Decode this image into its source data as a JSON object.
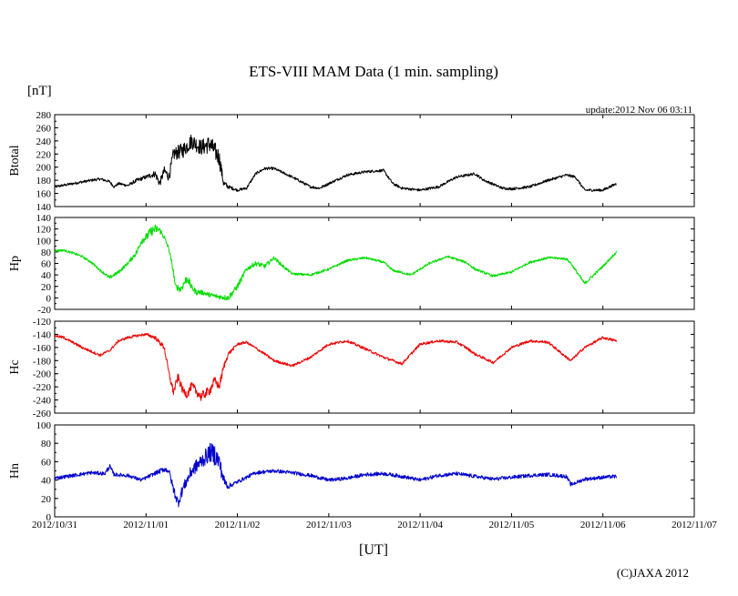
{
  "header": {
    "title": "ETS-VIII MAM Data (1 min. sampling)",
    "unit_label": "[nT]",
    "update_text": "update:2012 Nov 06 03:11"
  },
  "footer": {
    "x_axis_label": "[UT]",
    "copyright": "(C)JAXA 2012"
  },
  "chart_data": {
    "type": "line",
    "title": "ETS-VIII MAM Data (1 min. sampling)",
    "xlabel": "[UT]",
    "ylabel": "[nT]",
    "x_unit": "days since 2012/10/31 00:00 UT",
    "xlim": [
      0,
      7
    ],
    "x_tick_values": [
      0,
      1,
      2,
      3,
      4,
      5,
      6,
      7
    ],
    "x_tick_labels": [
      "2012/10/31",
      "2012/11/01",
      "2012/11/02",
      "2012/11/03",
      "2012/11/04",
      "2012/11/05",
      "2012/11/06",
      "2012/11/07"
    ],
    "series": [
      {
        "name": "Btotal",
        "color": "#000000",
        "ylim": [
          140,
          280
        ],
        "yticks": [
          140,
          160,
          180,
          200,
          220,
          240,
          260,
          280
        ],
        "x": [
          0,
          0.2,
          0.4,
          0.5,
          0.6,
          0.65,
          0.7,
          0.8,
          0.9,
          1.0,
          1.1,
          1.15,
          1.2,
          1.25,
          1.3,
          1.4,
          1.5,
          1.6,
          1.7,
          1.8,
          1.85,
          1.9,
          2.0,
          2.1,
          2.2,
          2.3,
          2.4,
          2.6,
          2.8,
          2.9,
          3.0,
          3.2,
          3.4,
          3.6,
          3.7,
          3.8,
          4.0,
          4.2,
          4.4,
          4.6,
          4.7,
          4.9,
          5.0,
          5.2,
          5.4,
          5.6,
          5.7,
          5.8,
          6.0,
          6.15
        ],
        "y": [
          170,
          175,
          180,
          182,
          178,
          170,
          175,
          172,
          180,
          185,
          190,
          175,
          195,
          185,
          220,
          225,
          240,
          230,
          235,
          215,
          175,
          170,
          165,
          168,
          190,
          198,
          198,
          185,
          170,
          168,
          175,
          188,
          193,
          195,
          175,
          168,
          165,
          170,
          185,
          190,
          180,
          168,
          167,
          170,
          180,
          188,
          185,
          165,
          165,
          175
        ],
        "noise": [
          2,
          2,
          2,
          2,
          2,
          2,
          2,
          2,
          3,
          3,
          5,
          6,
          6,
          8,
          10,
          12,
          12,
          12,
          14,
          14,
          6,
          3,
          2,
          2,
          2,
          2,
          2,
          2,
          2,
          2,
          2,
          2,
          2,
          2,
          2,
          2,
          2,
          2,
          2,
          2,
          2,
          2,
          2,
          2,
          2,
          2,
          2,
          2,
          2,
          2
        ]
      },
      {
        "name": "Hp",
        "color": "#00dd00",
        "ylim": [
          -20,
          140
        ],
        "yticks": [
          -20,
          0,
          20,
          40,
          60,
          80,
          100,
          120,
          140
        ],
        "x": [
          0,
          0.1,
          0.2,
          0.3,
          0.4,
          0.5,
          0.6,
          0.7,
          0.8,
          0.9,
          0.95,
          1.0,
          1.05,
          1.1,
          1.15,
          1.2,
          1.25,
          1.3,
          1.32,
          1.38,
          1.45,
          1.5,
          1.55,
          1.6,
          1.7,
          1.8,
          1.9,
          2.0,
          2.05,
          2.1,
          2.2,
          2.3,
          2.4,
          2.5,
          2.6,
          2.8,
          3.0,
          3.2,
          3.4,
          3.6,
          3.7,
          3.9,
          4.1,
          4.3,
          4.5,
          4.6,
          4.8,
          5.0,
          5.2,
          5.4,
          5.6,
          5.65,
          5.8,
          6.0,
          6.15
        ],
        "y": [
          82,
          83,
          78,
          72,
          62,
          48,
          35,
          45,
          60,
          80,
          100,
          105,
          115,
          120,
          118,
          105,
          85,
          45,
          20,
          15,
          35,
          18,
          10,
          10,
          5,
          2,
          0,
          20,
          35,
          50,
          60,
          55,
          70,
          55,
          42,
          40,
          50,
          65,
          70,
          62,
          48,
          40,
          60,
          72,
          62,
          50,
          38,
          45,
          62,
          70,
          68,
          60,
          25,
          55,
          80
        ],
        "noise": [
          2,
          2,
          2,
          2,
          2,
          2,
          3,
          3,
          3,
          5,
          6,
          7,
          8,
          8,
          6,
          4,
          4,
          5,
          5,
          6,
          8,
          5,
          5,
          4,
          4,
          4,
          5,
          5,
          5,
          4,
          4,
          4,
          3,
          3,
          2,
          2,
          2,
          2,
          2,
          2,
          2,
          2,
          2,
          2,
          2,
          2,
          2,
          2,
          2,
          2,
          2,
          2,
          3,
          2,
          2
        ]
      },
      {
        "name": "Hc",
        "color": "#ee0000",
        "ylim": [
          -260,
          -120
        ],
        "yticks": [
          -260,
          -240,
          -220,
          -200,
          -180,
          -160,
          -140,
          -120
        ],
        "x": [
          0,
          0.1,
          0.3,
          0.5,
          0.55,
          0.6,
          0.7,
          0.8,
          0.9,
          1.0,
          1.1,
          1.2,
          1.25,
          1.3,
          1.35,
          1.4,
          1.45,
          1.5,
          1.6,
          1.7,
          1.75,
          1.8,
          1.85,
          1.9,
          2.0,
          2.1,
          2.3,
          2.4,
          2.6,
          2.8,
          3.0,
          3.2,
          3.4,
          3.6,
          3.8,
          4.0,
          4.2,
          4.4,
          4.5,
          4.6,
          4.8,
          5.0,
          5.2,
          5.4,
          5.6,
          5.65,
          5.8,
          6.0,
          6.15
        ],
        "y": [
          -142,
          -145,
          -160,
          -172,
          -168,
          -165,
          -150,
          -145,
          -142,
          -140,
          -145,
          -160,
          -200,
          -228,
          -205,
          -225,
          -232,
          -218,
          -235,
          -225,
          -210,
          -220,
          -190,
          -170,
          -155,
          -152,
          -170,
          -180,
          -188,
          -175,
          -155,
          -150,
          -162,
          -175,
          -185,
          -155,
          -150,
          -152,
          -160,
          -170,
          -183,
          -160,
          -150,
          -152,
          -175,
          -180,
          -160,
          -145,
          -150
        ],
        "noise": [
          2,
          2,
          2,
          2,
          2,
          2,
          2,
          2,
          2,
          2,
          3,
          4,
          5,
          6,
          6,
          6,
          6,
          6,
          7,
          7,
          6,
          6,
          5,
          3,
          2,
          2,
          2,
          2,
          2,
          2,
          2,
          2,
          2,
          2,
          2,
          2,
          2,
          2,
          2,
          2,
          2,
          2,
          2,
          2,
          2,
          2,
          2,
          2,
          2
        ]
      },
      {
        "name": "Hn",
        "color": "#0000cc",
        "ylim": [
          0,
          100
        ],
        "yticks": [
          0,
          20,
          40,
          60,
          80,
          100
        ],
        "x": [
          0,
          0.2,
          0.4,
          0.55,
          0.6,
          0.65,
          0.8,
          0.95,
          1.05,
          1.2,
          1.25,
          1.3,
          1.35,
          1.4,
          1.45,
          1.5,
          1.6,
          1.7,
          1.75,
          1.8,
          1.85,
          1.9,
          2.0,
          2.2,
          2.4,
          2.6,
          2.8,
          3.0,
          3.2,
          3.4,
          3.6,
          3.8,
          4.0,
          4.2,
          4.4,
          4.6,
          4.8,
          5.0,
          5.2,
          5.4,
          5.6,
          5.65,
          5.8,
          6.0,
          6.15
        ],
        "y": [
          42,
          45,
          48,
          47,
          55,
          46,
          45,
          40,
          45,
          52,
          50,
          30,
          15,
          30,
          40,
          50,
          60,
          70,
          68,
          60,
          40,
          33,
          38,
          48,
          50,
          48,
          45,
          40,
          42,
          46,
          47,
          44,
          40,
          45,
          47,
          44,
          41,
          43,
          45,
          46,
          44,
          35,
          41,
          43,
          44
        ],
        "noise": [
          2,
          2,
          2,
          2,
          3,
          2,
          2,
          2,
          2,
          3,
          3,
          5,
          6,
          6,
          6,
          7,
          8,
          10,
          12,
          10,
          6,
          3,
          2,
          2,
          2,
          2,
          2,
          2,
          2,
          2,
          2,
          2,
          2,
          2,
          2,
          2,
          2,
          2,
          2,
          2,
          2,
          2,
          2,
          2,
          2
        ]
      }
    ]
  }
}
